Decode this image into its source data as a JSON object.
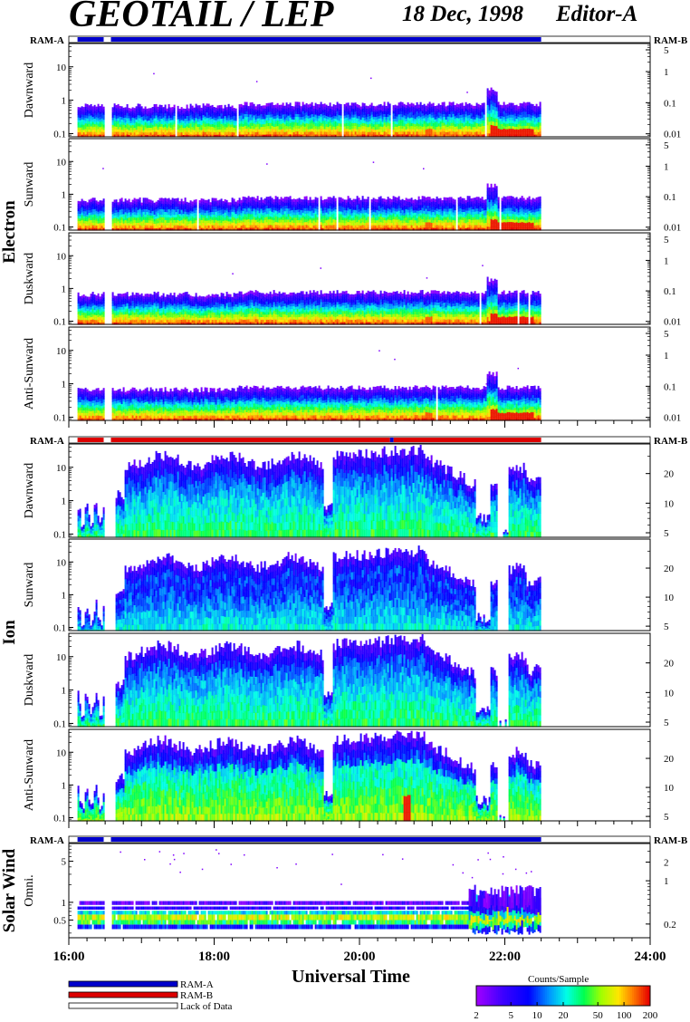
{
  "header": {
    "title": "GEOTAIL / LEP",
    "date": "18 Dec, 1998",
    "editor": "Editor-A"
  },
  "xaxis": {
    "label": "Universal Time",
    "range_hours": [
      16,
      24
    ],
    "tick_labels": [
      "16:00",
      "18:00",
      "20:00",
      "22:00",
      "24:00"
    ],
    "tick_hours": [
      16,
      18,
      20,
      22,
      24
    ]
  },
  "colors": {
    "ram_a": "#0000cc",
    "ram_b": "#dd0000",
    "lack": "#ffffff"
  },
  "legend": {
    "ram_a": "RAM-A",
    "ram_b": "RAM-B",
    "lack": "Lack of Data"
  },
  "colorbar": {
    "title": "Counts/Sample",
    "range": [
      2,
      200
    ],
    "scale": "log",
    "tick_labels": [
      "2",
      "5",
      "10",
      "20",
      "50",
      "100",
      "200"
    ],
    "tick_values": [
      2,
      5,
      10,
      20,
      50,
      100,
      200
    ]
  },
  "chart_data": {
    "type": "heatmap",
    "data_coverage_hours": [
      16.12,
      22.5
    ],
    "groups": [
      {
        "name": "Electron",
        "mode_strip": {
          "left_label": "RAM-A",
          "right_label": "RAM-B",
          "segments": [
            {
              "from": 16.12,
              "to": 16.48,
              "mode": "ram_a"
            },
            {
              "from": 16.48,
              "to": 16.58,
              "mode": "lack"
            },
            {
              "from": 16.58,
              "to": 22.5,
              "mode": "ram_a"
            }
          ]
        },
        "panels": [
          {
            "name": "Dawnward",
            "ylim": [
              0.08,
              50
            ],
            "yticks": [
              "0.1",
              "1",
              "10"
            ],
            "yticks_values": [
              0.1,
              1,
              10
            ],
            "right_ticks": [
              "0.01",
              "0.1",
              "1",
              "5"
            ],
            "right_values": [
              0.01,
              0.1,
              1,
              5
            ],
            "right_range": [
              0.008,
              8
            ]
          },
          {
            "name": "Sunward",
            "ylim": [
              0.08,
              50
            ],
            "yticks": [
              "0.1",
              "1",
              "10"
            ],
            "yticks_values": [
              0.1,
              1,
              10
            ],
            "right_ticks": [
              "0.01",
              "0.1",
              "1",
              "5"
            ],
            "right_values": [
              0.01,
              0.1,
              1,
              5
            ],
            "right_range": [
              0.008,
              8
            ]
          },
          {
            "name": "Duskward",
            "ylim": [
              0.08,
              50
            ],
            "yticks": [
              "0.1",
              "1",
              "10"
            ],
            "yticks_values": [
              0.1,
              1,
              10
            ],
            "right_ticks": [
              "0.01",
              "0.1",
              "1",
              "5"
            ],
            "right_values": [
              0.01,
              0.1,
              1,
              5
            ],
            "right_range": [
              0.008,
              8
            ]
          },
          {
            "name": "Anti-Sunward",
            "ylim": [
              0.08,
              50
            ],
            "yticks": [
              "0.1",
              "1",
              "10"
            ],
            "yticks_values": [
              0.1,
              1,
              10
            ],
            "right_ticks": [
              "0.01",
              "0.1",
              "1",
              "5"
            ],
            "right_values": [
              0.01,
              0.1,
              1,
              5
            ],
            "right_range": [
              0.008,
              8
            ]
          }
        ]
      },
      {
        "name": "Ion",
        "mode_strip": {
          "left_label": "RAM-A",
          "right_label": "RAM-B",
          "segments": [
            {
              "from": 16.12,
              "to": 16.48,
              "mode": "ram_b"
            },
            {
              "from": 16.48,
              "to": 16.58,
              "mode": "lack"
            },
            {
              "from": 16.58,
              "to": 20.42,
              "mode": "ram_b"
            },
            {
              "from": 20.42,
              "to": 20.47,
              "mode": "ram_a"
            },
            {
              "from": 20.47,
              "to": 22.5,
              "mode": "ram_b"
            }
          ]
        },
        "panels": [
          {
            "name": "Dawnward",
            "ylim": [
              0.08,
              50
            ],
            "yticks": [
              "0.1",
              "1",
              "10"
            ],
            "yticks_values": [
              0.1,
              1,
              10
            ],
            "right_ticks": [
              "5",
              "10",
              "20"
            ],
            "right_values": [
              5,
              10,
              20
            ],
            "right_range": [
              4.5,
              40
            ]
          },
          {
            "name": "Sunward",
            "ylim": [
              0.08,
              50
            ],
            "yticks": [
              "0.1",
              "1",
              "10"
            ],
            "yticks_values": [
              0.1,
              1,
              10
            ],
            "right_ticks": [
              "5",
              "10",
              "20"
            ],
            "right_values": [
              5,
              10,
              20
            ],
            "right_range": [
              4.5,
              40
            ]
          },
          {
            "name": "Duskward",
            "ylim": [
              0.08,
              50
            ],
            "yticks": [
              "0.1",
              "1",
              "10"
            ],
            "yticks_values": [
              0.1,
              1,
              10
            ],
            "right_ticks": [
              "5",
              "10",
              "20"
            ],
            "right_values": [
              5,
              10,
              20
            ],
            "right_range": [
              4.5,
              40
            ]
          },
          {
            "name": "Anti-Sunward",
            "ylim": [
              0.08,
              50
            ],
            "yticks": [
              "0.1",
              "1",
              "10"
            ],
            "yticks_values": [
              0.1,
              1,
              10
            ],
            "right_ticks": [
              "5",
              "10",
              "20"
            ],
            "right_values": [
              5,
              10,
              20
            ],
            "right_range": [
              4.5,
              40
            ]
          }
        ]
      },
      {
        "name": "Solar Wind",
        "mode_strip": {
          "left_label": "RAM-A",
          "right_label": "RAM-B",
          "segments": [
            {
              "from": 16.12,
              "to": 16.48,
              "mode": "ram_a"
            },
            {
              "from": 16.48,
              "to": 16.58,
              "mode": "lack"
            },
            {
              "from": 16.58,
              "to": 22.5,
              "mode": "ram_a"
            }
          ]
        },
        "panels": [
          {
            "name": "Omni.",
            "ylim": [
              0.25,
              10
            ],
            "yticks": [
              "0.5",
              "1",
              "5"
            ],
            "yticks_values": [
              0.5,
              1,
              5
            ],
            "right_ticks": [
              "0.2",
              "1",
              "2"
            ],
            "right_values": [
              0.2,
              1,
              2
            ],
            "right_range": [
              0.12,
              4
            ]
          }
        ]
      }
    ]
  }
}
